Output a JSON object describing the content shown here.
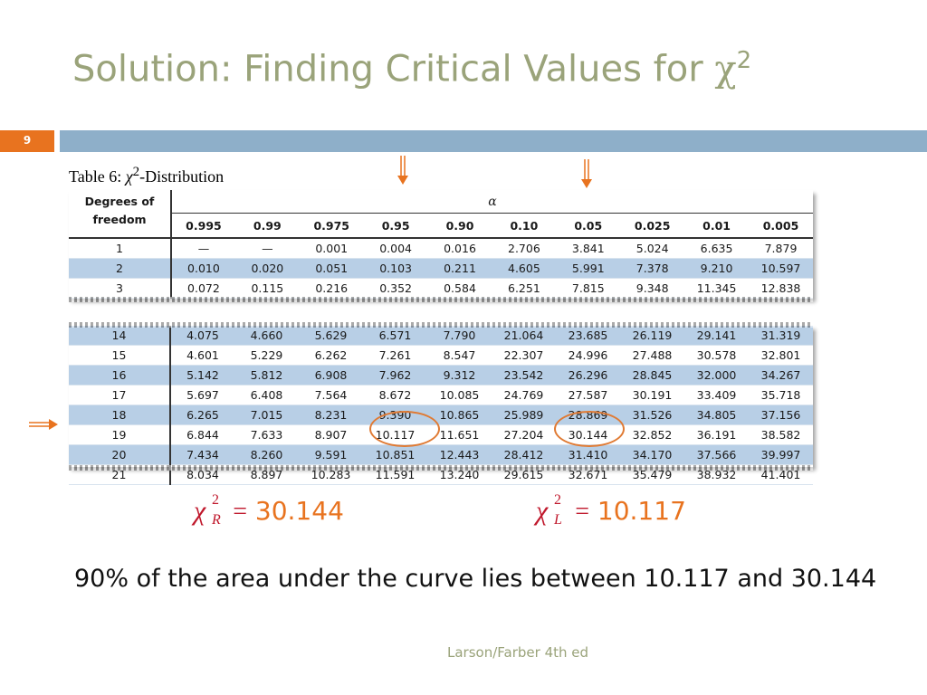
{
  "title": {
    "text": "Solution: Finding Critical Values for ",
    "chi": "χ",
    "exp": "2"
  },
  "slide_number": "9",
  "table_caption": {
    "prefix": "Table 6: ",
    "chi": "χ",
    "exp": "2",
    "suffix": "-Distribution"
  },
  "table": {
    "df_header_line1": "Degrees of",
    "df_header_line2": "freedom",
    "alpha_symbol": "α",
    "alphas": [
      "0.995",
      "0.99",
      "0.975",
      "0.95",
      "0.90",
      "0.10",
      "0.05",
      "0.025",
      "0.01",
      "0.005"
    ],
    "top_rows": [
      {
        "df": "1",
        "values": [
          "—",
          "—",
          "0.001",
          "0.004",
          "0.016",
          "2.706",
          "3.841",
          "5.024",
          "6.635",
          "7.879"
        ]
      },
      {
        "df": "2",
        "values": [
          "0.010",
          "0.020",
          "0.051",
          "0.103",
          "0.211",
          "4.605",
          "5.991",
          "7.378",
          "9.210",
          "10.597"
        ]
      },
      {
        "df": "3",
        "values": [
          "0.072",
          "0.115",
          "0.216",
          "0.352",
          "0.584",
          "6.251",
          "7.815",
          "9.348",
          "11.345",
          "12.838"
        ]
      }
    ],
    "bottom_rows": [
      {
        "df": "14",
        "values": [
          "4.075",
          "4.660",
          "5.629",
          "6.571",
          "7.790",
          "21.064",
          "23.685",
          "26.119",
          "29.141",
          "31.319"
        ]
      },
      {
        "df": "15",
        "values": [
          "4.601",
          "5.229",
          "6.262",
          "7.261",
          "8.547",
          "22.307",
          "24.996",
          "27.488",
          "30.578",
          "32.801"
        ]
      },
      {
        "df": "16",
        "values": [
          "5.142",
          "5.812",
          "6.908",
          "7.962",
          "9.312",
          "23.542",
          "26.296",
          "28.845",
          "32.000",
          "34.267"
        ]
      },
      {
        "df": "17",
        "values": [
          "5.697",
          "6.408",
          "7.564",
          "8.672",
          "10.085",
          "24.769",
          "27.587",
          "30.191",
          "33.409",
          "35.718"
        ]
      },
      {
        "df": "18",
        "values": [
          "6.265",
          "7.015",
          "8.231",
          "9.390",
          "10.865",
          "25.989",
          "28.869",
          "31.526",
          "34.805",
          "37.156"
        ]
      },
      {
        "df": "19",
        "values": [
          "6.844",
          "7.633",
          "8.907",
          "10.117",
          "11.651",
          "27.204",
          "30.144",
          "32.852",
          "36.191",
          "38.582"
        ]
      },
      {
        "df": "20",
        "values": [
          "7.434",
          "8.260",
          "9.591",
          "10.851",
          "12.443",
          "28.412",
          "31.410",
          "34.170",
          "37.566",
          "39.997"
        ]
      },
      {
        "df": "21",
        "values": [
          "8.034",
          "8.897",
          "10.283",
          "11.591",
          "13.240",
          "29.615",
          "32.671",
          "35.479",
          "38.932",
          "41.401"
        ]
      }
    ]
  },
  "results": {
    "right": {
      "chi": "χ",
      "exp": "2",
      "sub": "R",
      "eq": "=",
      "value": "30.144"
    },
    "left": {
      "chi": "χ",
      "exp": "2",
      "sub": "L",
      "eq": "=",
      "value": "10.117"
    }
  },
  "body_text": "90% of the area under the curve lies between 10.117 and 30.144",
  "footer": "Larson/Farber 4th ed",
  "colors": {
    "title": "#9aa37a",
    "accent_orange": "#e8731f",
    "header_bar": "#8eafc9",
    "row_shade": "#b8cfe6",
    "symbol_red": "#c0182c"
  }
}
